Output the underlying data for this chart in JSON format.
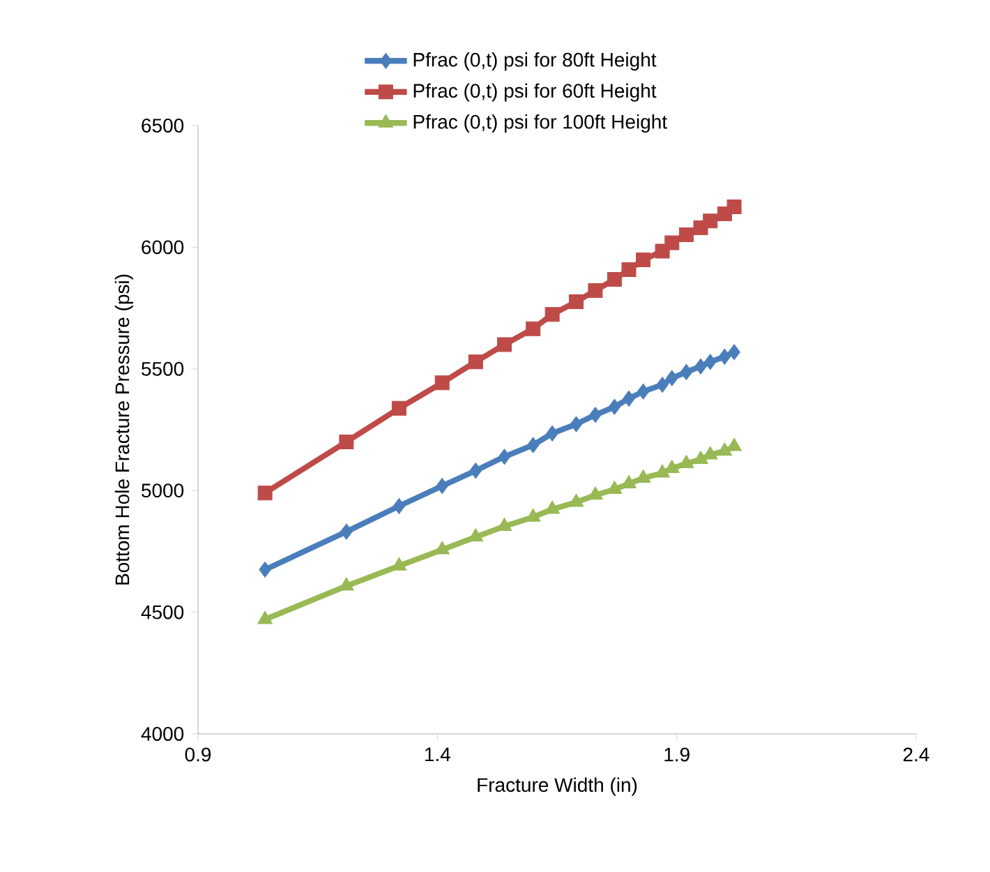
{
  "chart_data": {
    "type": "line",
    "xlabel": "Fracture Width (in)",
    "ylabel": "Bottom Hole Fracture Pressure (psi)",
    "xlim": [
      0.9,
      2.4
    ],
    "ylim": [
      4000,
      6500
    ],
    "xticks": [
      0.9,
      1.4,
      1.9,
      2.4
    ],
    "yticks": [
      4000,
      4500,
      5000,
      5500,
      6000,
      6500
    ],
    "x": [
      1.04,
      1.21,
      1.32,
      1.41,
      1.48,
      1.54,
      1.6,
      1.64,
      1.69,
      1.73,
      1.77,
      1.8,
      1.83,
      1.87,
      1.89,
      1.92,
      1.95,
      1.97,
      2.0,
      2.02
    ],
    "grid": false,
    "legend": "top",
    "line_style": "solid",
    "series": [
      {
        "name": "Pfrac (0,t) psi for 80ft Height",
        "color": "#4a7ebb",
        "marker": "diamond",
        "values": [
          4675,
          4831,
          4936,
          5019,
          5082,
          5139,
          5187,
          5235,
          5273,
          5311,
          5344,
          5378,
          5407,
          5435,
          5462,
          5487,
          5510,
          5529,
          5550,
          5569
        ]
      },
      {
        "name": "Pfrac (0,t) psi for 60ft Height",
        "color": "#be4b48",
        "marker": "square",
        "values": [
          4990,
          5200,
          5338,
          5443,
          5529,
          5600,
          5665,
          5724,
          5776,
          5822,
          5868,
          5908,
          5948,
          5984,
          6018,
          6051,
          6080,
          6108,
          6137,
          6166
        ]
      },
      {
        "name": "Pfrac (0,t) psi for 100ft Height",
        "color": "#98b954",
        "marker": "triangle",
        "values": [
          4470,
          4608,
          4690,
          4757,
          4809,
          4853,
          4891,
          4923,
          4952,
          4981,
          5005,
          5028,
          5051,
          5072,
          5091,
          5111,
          5128,
          5147,
          5162,
          5181
        ]
      }
    ]
  }
}
